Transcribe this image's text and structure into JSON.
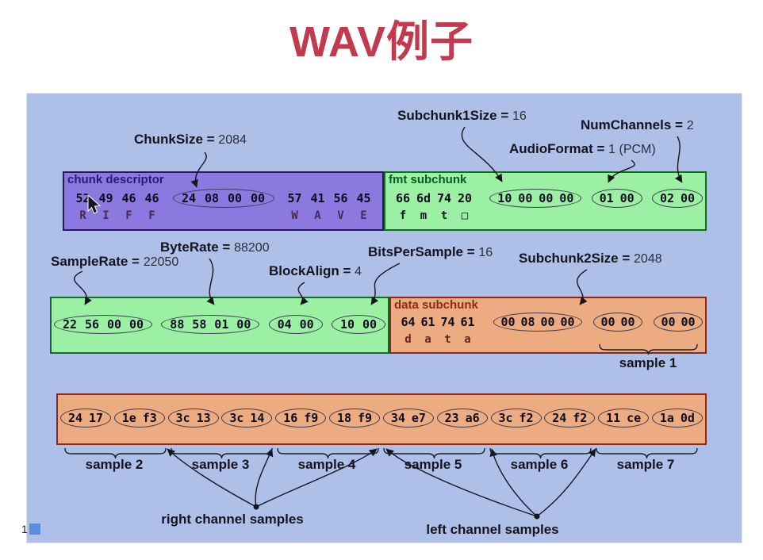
{
  "title": "WAV例子",
  "page_marker": "1",
  "colors": {
    "title_red": "#c23a4e",
    "panel_background": "#aec0e8",
    "chunk_descriptor_fill": "#8b79df",
    "fmt_fill": "#9bf0a3",
    "data_fill": "#ecab80"
  },
  "callouts": {
    "chunk_size": {
      "label": "ChunkSize =",
      "value": "2084"
    },
    "subchunk1_size": {
      "label": "Subchunk1Size =",
      "value": "16"
    },
    "num_channels": {
      "label": "NumChannels =",
      "value": "2"
    },
    "audio_format": {
      "label": "AudioFormat =",
      "value": "1 (PCM)"
    },
    "sample_rate": {
      "label": "SampleRate =",
      "value": "22050"
    },
    "byte_rate": {
      "label": "ByteRate =",
      "value": "88200"
    },
    "block_align": {
      "label": "BlockAlign =",
      "value": "4"
    },
    "bits_per_sample": {
      "label": "BitsPerSample =",
      "value": "16"
    },
    "subchunk2_size": {
      "label": "Subchunk2Size =",
      "value": "2048"
    }
  },
  "boxes": {
    "chunk_descriptor": {
      "title": "chunk descriptor",
      "has_ascii": true,
      "groups": [
        {
          "hex": [
            "52",
            "49",
            "46",
            "46"
          ],
          "ascii": [
            "R",
            "I",
            "F",
            "F"
          ],
          "ellipse": false
        },
        {
          "hex": [
            "24",
            "08",
            "00",
            "00"
          ],
          "ellipse": true
        },
        {
          "hex": [
            "57",
            "41",
            "56",
            "45"
          ],
          "ascii": [
            "W",
            "A",
            "V",
            "E"
          ],
          "ellipse": false
        }
      ]
    },
    "fmt_subchunk": {
      "title": "fmt subchunk",
      "has_ascii": true,
      "groups": [
        {
          "hex": [
            "66",
            "6d",
            "74",
            "20"
          ],
          "ascii": [
            "f",
            "m",
            "t",
            "□"
          ],
          "ellipse": false
        },
        {
          "hex": [
            "10",
            "00",
            "00",
            "00"
          ],
          "ellipse": true
        },
        {
          "hex": [
            "01",
            "00"
          ],
          "ellipse": true
        },
        {
          "hex": [
            "02",
            "00"
          ],
          "ellipse": true
        }
      ]
    },
    "fmt_fields": {
      "title": "",
      "has_ascii": false,
      "groups": [
        {
          "hex": [
            "22",
            "56",
            "00",
            "00"
          ],
          "ellipse": true
        },
        {
          "hex": [
            "88",
            "58",
            "01",
            "00"
          ],
          "ellipse": true
        },
        {
          "hex": [
            "04",
            "00"
          ],
          "ellipse": true
        },
        {
          "hex": [
            "10",
            "00"
          ],
          "ellipse": true
        }
      ]
    },
    "data_subchunk": {
      "title": "data subchunk",
      "has_ascii": true,
      "groups": [
        {
          "hex": [
            "64",
            "61",
            "74",
            "61"
          ],
          "ascii": [
            "d",
            "a",
            "t",
            "a"
          ],
          "ellipse": false
        },
        {
          "hex": [
            "00",
            "08",
            "00",
            "00"
          ],
          "ellipse": true
        },
        {
          "hex": [
            "00",
            "00"
          ],
          "ellipse": true
        },
        {
          "hex": [
            "00",
            "00"
          ],
          "ellipse": true
        }
      ]
    },
    "sample_data": {
      "title": "",
      "has_ascii": false,
      "groups": [
        {
          "hex": [
            "24",
            "17"
          ],
          "ellipse": true
        },
        {
          "hex": [
            "1e",
            "f3"
          ],
          "ellipse": true
        },
        {
          "hex": [
            "3c",
            "13"
          ],
          "ellipse": true
        },
        {
          "hex": [
            "3c",
            "14"
          ],
          "ellipse": true
        },
        {
          "hex": [
            "16",
            "f9"
          ],
          "ellipse": true
        },
        {
          "hex": [
            "18",
            "f9"
          ],
          "ellipse": true
        },
        {
          "hex": [
            "34",
            "e7"
          ],
          "ellipse": true
        },
        {
          "hex": [
            "23",
            "a6"
          ],
          "ellipse": true
        },
        {
          "hex": [
            "3c",
            "f2"
          ],
          "ellipse": true
        },
        {
          "hex": [
            "24",
            "f2"
          ],
          "ellipse": true
        },
        {
          "hex": [
            "11",
            "ce"
          ],
          "ellipse": true
        },
        {
          "hex": [
            "1a",
            "0d"
          ],
          "ellipse": true
        }
      ]
    }
  },
  "sample1_label": "sample 1",
  "sample_labels": [
    "sample 2",
    "sample 3",
    "sample 4",
    "sample 5",
    "sample 6",
    "sample 7"
  ],
  "channel_labels": {
    "right": "right channel samples",
    "left": "left channel samples"
  }
}
